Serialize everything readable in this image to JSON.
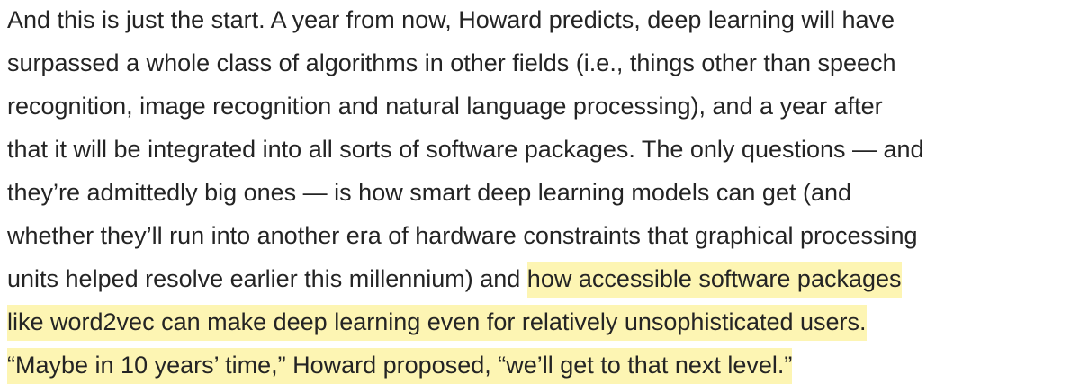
{
  "paragraph": {
    "lines": [
      [
        {
          "text": "And this is just the start. A year from now, Howard predicts, deep learning will have",
          "highlighted": false
        }
      ],
      [
        {
          "text": "surpassed a whole class of algorithms in other fields (i.e., things other than speech",
          "highlighted": false
        }
      ],
      [
        {
          "text": "recognition, image recognition and natural language processing), and a year after",
          "highlighted": false
        }
      ],
      [
        {
          "text": "that it will be integrated into all sorts of software packages. The only questions — and",
          "highlighted": false
        }
      ],
      [
        {
          "text": "they’re admittedly big ones — is how smart deep learning models can get (and",
          "highlighted": false
        }
      ],
      [
        {
          "text": "whether they’ll run into another era of hardware constraints that graphical processing",
          "highlighted": false
        }
      ],
      [
        {
          "text": "units helped resolve earlier this millennium) and ",
          "highlighted": false
        },
        {
          "text": "how accessible software packages",
          "highlighted": true
        }
      ],
      [
        {
          "text": "like word2vec can make deep learning even for relatively unsophisticated users.",
          "highlighted": true
        }
      ],
      [
        {
          "text": "“Maybe in 10 years’ time,” Howard proposed, “we’ll get to that next level.”",
          "highlighted": true
        }
      ]
    ]
  }
}
